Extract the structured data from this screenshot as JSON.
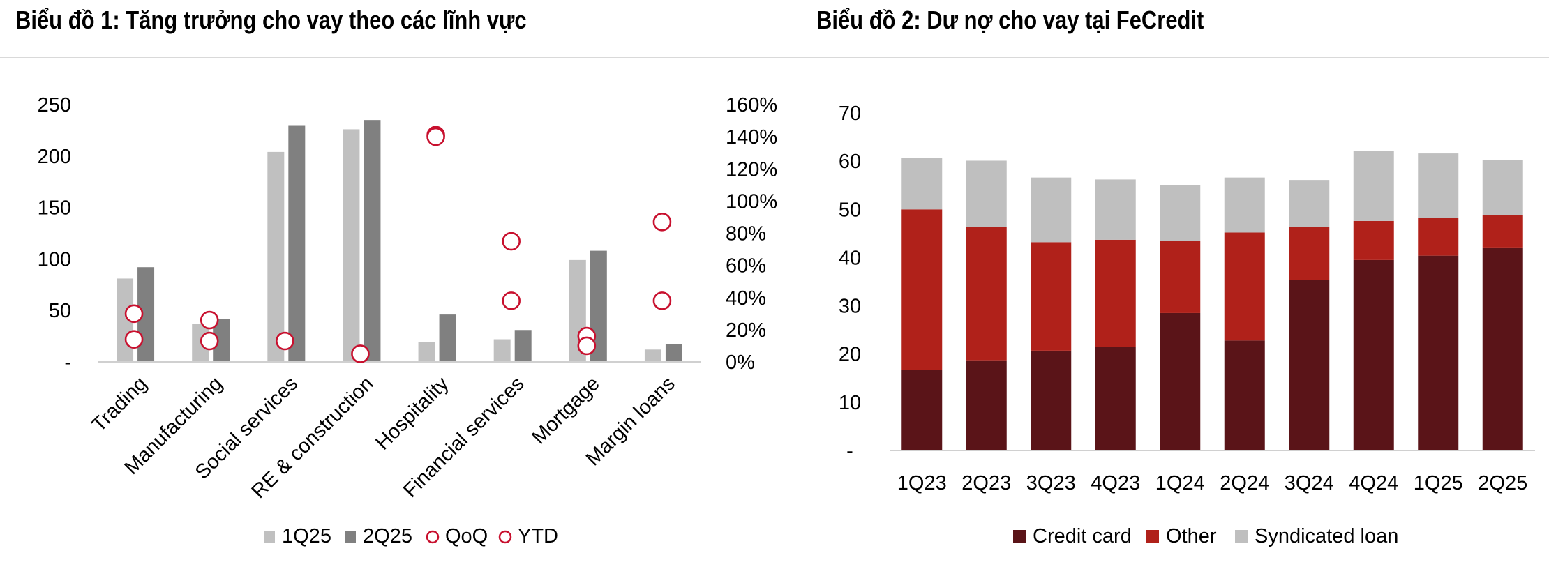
{
  "chart_data": [
    {
      "type": "bar",
      "title": "Biểu đồ 1: Tăng trưởng cho vay theo các lĩnh vực",
      "categories": [
        "Trading",
        "Manufacturing",
        "Social services",
        "RE & construction",
        "Hospitality",
        "Financial services",
        "Mortgage",
        "Margin loans"
      ],
      "left_axis": {
        "ylim": [
          0,
          250
        ],
        "ticks": [
          "-",
          "50",
          "100",
          "150",
          "200",
          "250"
        ]
      },
      "right_axis": {
        "ylim": [
          0,
          160
        ],
        "ticks": [
          "0%",
          "20%",
          "40%",
          "60%",
          "80%",
          "100%",
          "120%",
          "140%",
          "160%"
        ]
      },
      "series": [
        {
          "name": "1Q25",
          "kind": "bar",
          "axis": "left",
          "color": "#c0c0c0",
          "values": [
            81,
            37,
            204,
            226,
            19,
            22,
            99,
            12
          ]
        },
        {
          "name": "2Q25",
          "kind": "bar",
          "axis": "left",
          "color": "#808080",
          "values": [
            92,
            42,
            230,
            235,
            46,
            31,
            108,
            17
          ]
        },
        {
          "name": "QoQ",
          "kind": "scatter",
          "axis": "right",
          "color": "#c8102e",
          "values": [
            14,
            13,
            null,
            null,
            140,
            38,
            10,
            38
          ]
        },
        {
          "name": "YTD",
          "kind": "scatter",
          "axis": "right",
          "color": "#c8102e",
          "values": [
            30,
            26,
            13,
            5,
            141,
            75,
            16,
            87
          ]
        }
      ],
      "legend": {
        "position": "bottom",
        "items": [
          "1Q25",
          "2Q25",
          "QoQ",
          "YTD"
        ]
      }
    },
    {
      "type": "bar",
      "stacked": true,
      "title": "Biểu đồ 2: Dư nợ cho vay tại FeCredit",
      "categories": [
        "1Q23",
        "2Q23",
        "3Q23",
        "4Q23",
        "1Q24",
        "2Q24",
        "3Q24",
        "4Q24",
        "1Q25",
        "2Q25"
      ],
      "ylim": [
        0,
        70
      ],
      "yticks": [
        "-",
        "10",
        "20",
        "30",
        "40",
        "50",
        "60",
        "70"
      ],
      "series": [
        {
          "name": "Credit card",
          "color": "#5a1418",
          "values": [
            16.7,
            18.7,
            20.7,
            21.5,
            28.5,
            22.8,
            35.3,
            39.5,
            40.4,
            42.1
          ]
        },
        {
          "name": "Other",
          "color": "#b0211a",
          "values": [
            33.3,
            27.6,
            22.5,
            22.2,
            15.0,
            22.4,
            11.0,
            8.1,
            7.9,
            6.7
          ]
        },
        {
          "name": "Syndicated loan",
          "color": "#bfbfbf",
          "values": [
            10.7,
            13.8,
            13.4,
            12.5,
            11.6,
            11.4,
            9.8,
            14.5,
            13.3,
            11.5
          ]
        }
      ],
      "legend": {
        "position": "bottom",
        "items": [
          "Credit card",
          "Other",
          "Syndicated loan"
        ]
      }
    }
  ]
}
